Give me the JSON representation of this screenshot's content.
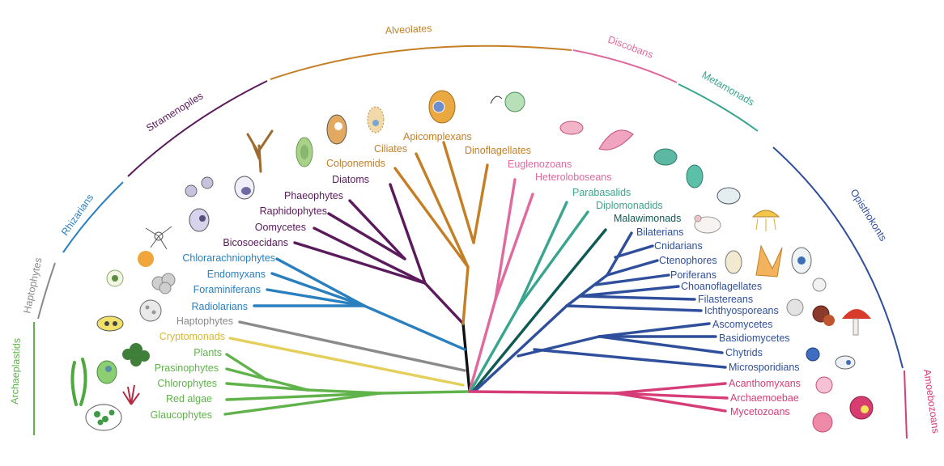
{
  "colors": {
    "archaeplastids": "#5fb34a",
    "cryptomonads": "#e3cf5a",
    "haptophytes": "#8a8a8a",
    "rhizarians": "#2a7fbf",
    "stramenopiles": "#5a1a5c",
    "alveolates": "#c47f25",
    "discobans": "#e06a9e",
    "metamonads": "#3aa58e",
    "malawimonads": "#0f5a55",
    "opisthokonts": "#2f4f9c",
    "amoebozoans": "#d63d78",
    "root": "#111111"
  },
  "supergroups": [
    {
      "key": "archaeplastids",
      "label": "Archaeplastids"
    },
    {
      "key": "haptophytes",
      "label": "Haptophytes"
    },
    {
      "key": "rhizarians",
      "label": "Rhizarians"
    },
    {
      "key": "stramenopiles",
      "label": "Stramenopiles"
    },
    {
      "key": "alveolates",
      "label": "Alveolates"
    },
    {
      "key": "discobans",
      "label": "Discobans"
    },
    {
      "key": "metamonads",
      "label": "Metamonads"
    },
    {
      "key": "opisthokonts",
      "label": "Opisthokonts"
    },
    {
      "key": "amoebozoans",
      "label": "Amoebozoans"
    }
  ],
  "taxa": {
    "glaucophytes": "Glaucophytes",
    "red_algae": "Red algae",
    "chlorophytes": "Chlorophytes",
    "prasinophytes": "Prasinophytes",
    "plants": "Plants",
    "cryptomonads": "Cryptomonads",
    "haptophytes": "Haptophytes",
    "radiolarians": "Radiolarians",
    "foraminiferans": "Foraminiferans",
    "endomyxans": "Endomyxans",
    "chlorarachniophytes": "Chlorarachniophytes",
    "bicosoecidans": "Bicosoecidans",
    "oomycetes": "Oomycetes",
    "raphidophytes": "Raphidophytes",
    "phaeophytes": "Phaeophytes",
    "diatoms": "Diatoms",
    "colponemids": "Colponemids",
    "ciliates": "Ciliates",
    "apicomplexans": "Apicomplexans",
    "dinoflagellates": "Dinoflagellates",
    "euglenozoans": "Euglenozoans",
    "heteroloboseans": "Heteroloboseans",
    "parabasalids": "Parabasalids",
    "diplomonadids": "Diplomonadids",
    "malawimonads": "Malawimonads",
    "bilaterians": "Bilaterians",
    "cnidarians": "Cnidarians",
    "ctenophores": "Ctenophores",
    "poriferans": "Poriferans",
    "choanoflagellates": "Choanoflagellates",
    "filastereans": "Filastereans",
    "ichthyosporeans": "Ichthyosporeans",
    "ascomycetes": "Ascomycetes",
    "basidiomycetes": "Basidiomycetes",
    "chytrids": "Chytrids",
    "microsporidians": "Microsporidians",
    "acanthomyxans": "Acanthomyxans",
    "archaemoebae": "Archaemoebae",
    "mycetozoans": "Mycetozoans"
  }
}
